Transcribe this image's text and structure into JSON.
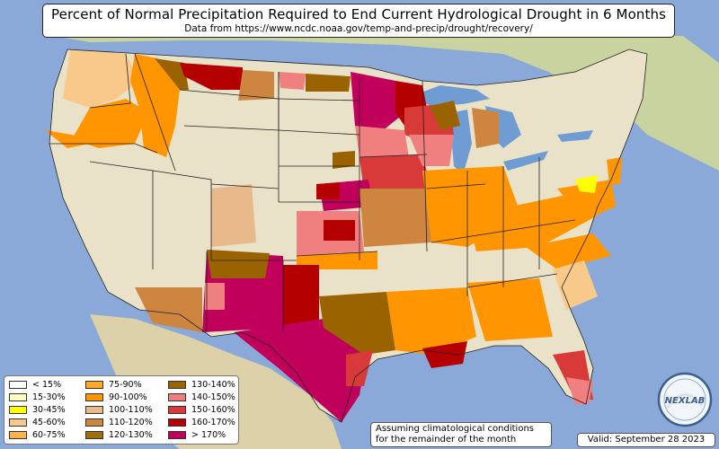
{
  "title": "Percent of Normal Precipitation Required to End Current Hydrological Drought in 6 Months",
  "subtitle": "Data from https://www.ncdc.noaa.gov/temp-and-precip/drought/recovery/",
  "legend": [
    {
      "label": "< 15%",
      "color": "#ffffff"
    },
    {
      "label": "15-30%",
      "color": "#ffffc0"
    },
    {
      "label": "30-45%",
      "color": "#ffff00"
    },
    {
      "label": "45-60%",
      "color": "#f9c98c"
    },
    {
      "label": "60-75%",
      "color": "#ffb347"
    },
    {
      "label": "75-90%",
      "color": "#ffa726"
    },
    {
      "label": "90-100%",
      "color": "#ff9500"
    },
    {
      "label": "100-110%",
      "color": "#e8b98b"
    },
    {
      "label": "110-120%",
      "color": "#cd853f"
    },
    {
      "label": "120-130%",
      "color": "#a0700b"
    },
    {
      "label": "130-140%",
      "color": "#9a6300"
    },
    {
      "label": "140-150%",
      "color": "#f08080"
    },
    {
      "label": "150-160%",
      "color": "#d83a3a"
    },
    {
      "label": "160-170%",
      "color": "#b40000"
    },
    {
      "label": "> 170%",
      "color": "#c0005a"
    }
  ],
  "note": {
    "line1": "Assuming climatological conditions",
    "line2": "for the remainder of the month"
  },
  "valid": "Valid: September 28 2023",
  "logo_text": "NEXLAB",
  "colors": {
    "ocean": "#8aa9d8",
    "land": "#e9e2c8",
    "lakes": "#6f9cd3"
  }
}
